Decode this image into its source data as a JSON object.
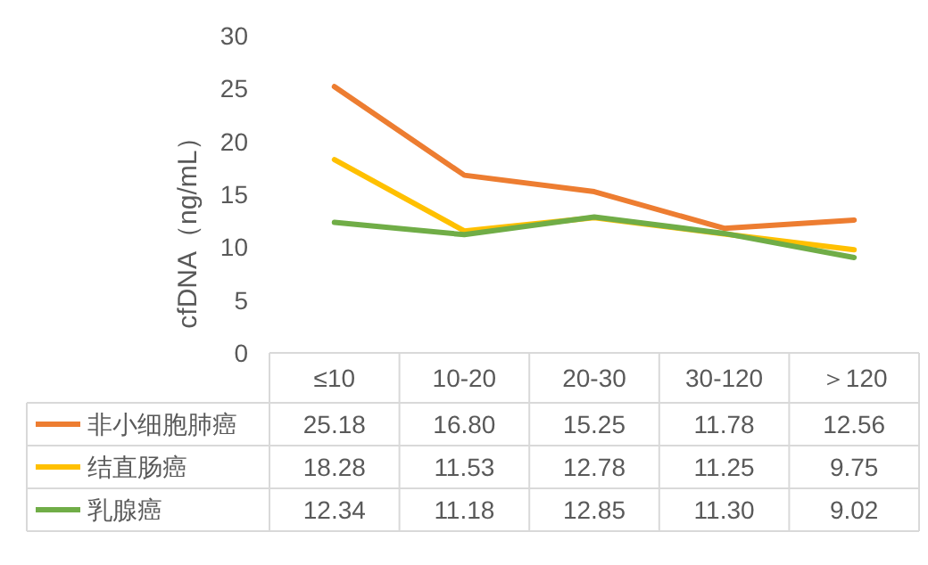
{
  "chart_data": {
    "type": "line",
    "ylabel": "cfDNA（ng/mL）",
    "categories": [
      "≤10",
      "10-20",
      "20-30",
      "30-120",
      "＞120"
    ],
    "series": [
      {
        "name": "非小细胞肺癌",
        "color": "#ed7d31",
        "values": [
          25.18,
          16.8,
          15.25,
          11.78,
          12.56
        ],
        "value_labels": [
          "25.18",
          "16.80",
          "15.25",
          "11.78",
          "12.56"
        ]
      },
      {
        "name": "结直肠癌",
        "color": "#ffc000",
        "values": [
          18.28,
          11.53,
          12.78,
          11.25,
          9.75
        ],
        "value_labels": [
          "18.28",
          "11.53",
          "12.78",
          "11.25",
          "9.75"
        ]
      },
      {
        "name": "乳腺癌",
        "color": "#70ad47",
        "values": [
          12.34,
          11.18,
          12.85,
          11.3,
          9.02
        ],
        "value_labels": [
          "12.34",
          "11.18",
          "12.85",
          "11.30",
          "9.02"
        ]
      }
    ],
    "ylim": [
      0,
      30
    ],
    "yticks": [
      0,
      5,
      10,
      15,
      20,
      25,
      30
    ],
    "legend": "bottom",
    "grid": false
  }
}
